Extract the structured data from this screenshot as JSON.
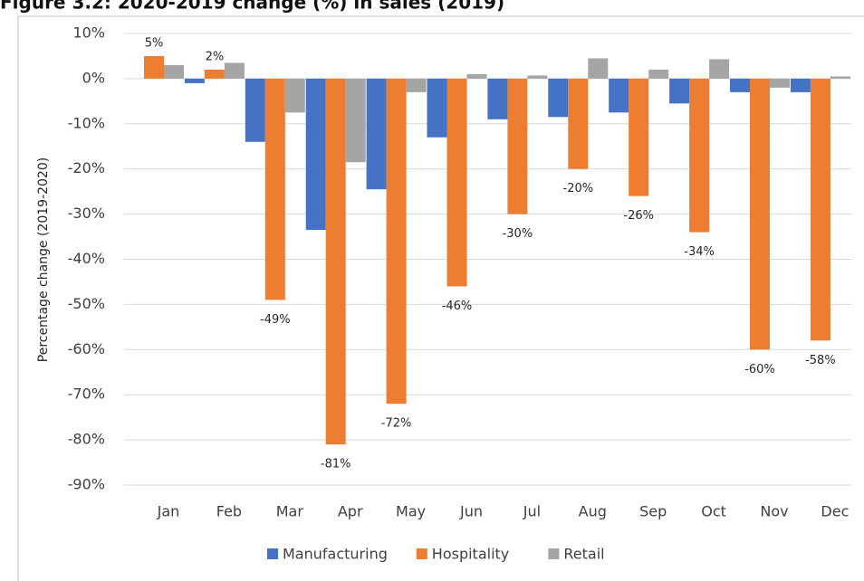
{
  "chart_data": {
    "type": "bar",
    "title": "Figure 3.2: 2020-2019 change (%) in sales (2019)",
    "ylabel": "Percentage change (2019-2020)",
    "categories": [
      "Jan",
      "Feb",
      "Mar",
      "Apr",
      "May",
      "Jun",
      "Jul",
      "Aug",
      "Sep",
      "Oct",
      "Nov",
      "Dec"
    ],
    "series": [
      {
        "name": "Manufacturing",
        "color": "#4472c4",
        "values": [
          0,
          -1,
          -14,
          -33.5,
          -24.5,
          -13,
          -9,
          -8.5,
          -7.5,
          -5.5,
          -3,
          -3
        ]
      },
      {
        "name": "Hospitality",
        "color": "#ed7d31",
        "values": [
          5,
          2,
          -49,
          -81,
          -72,
          -46,
          -30,
          -20,
          -26,
          -34,
          -60,
          -58
        ],
        "value_labels": [
          "5%",
          "2%",
          "-49%",
          "-81%",
          "-72%",
          "-46%",
          "-30%",
          "-20%",
          "-26%",
          "-34%",
          "-60%",
          "-58%"
        ]
      },
      {
        "name": "Retail",
        "color": "#a5a5a5",
        "values": [
          3,
          3.5,
          -7.5,
          -18.5,
          -3,
          1,
          0.7,
          4.5,
          2,
          4.3,
          -2,
          0.5
        ]
      }
    ],
    "ylim": [
      -90,
      10
    ],
    "yticks": [
      {
        "value": 10,
        "label": "10%"
      },
      {
        "value": 0,
        "label": "0%"
      },
      {
        "value": -10,
        "label": "-10%"
      },
      {
        "value": -20,
        "label": "-20%"
      },
      {
        "value": -30,
        "label": "-30%"
      },
      {
        "value": -40,
        "label": "-40%"
      },
      {
        "value": -50,
        "label": "-50%"
      },
      {
        "value": -60,
        "label": "-60%"
      },
      {
        "value": -70,
        "label": "-70%"
      },
      {
        "value": -80,
        "label": "-80%"
      },
      {
        "value": -90,
        "label": "-90%"
      }
    ],
    "grid": true,
    "legend": "bottom"
  }
}
